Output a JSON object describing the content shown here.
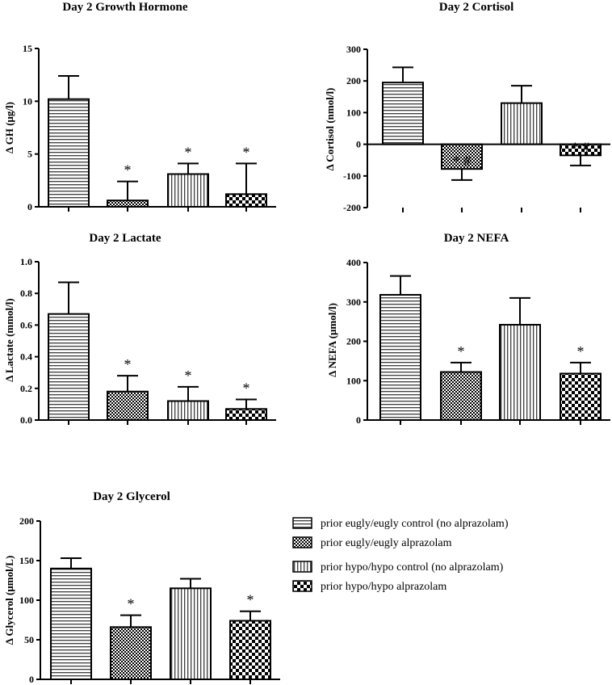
{
  "colors": {
    "ink": "#000000",
    "background": "#ffffff"
  },
  "legend": {
    "items": [
      {
        "label": "prior eugly/eugly control (no alprazolam)",
        "pattern": "hlines"
      },
      {
        "label": "prior eugly/eugly alprazolam",
        "pattern": "fine-check"
      },
      {
        "label": "prior hypo/hypo control (no alprazolam)",
        "pattern": "vlines"
      },
      {
        "label": "prior hypo/hypo alprazolam",
        "pattern": "coarse-check"
      }
    ]
  },
  "chart_data": [
    {
      "type": "bar",
      "title": "Day 2 Growth Hormone",
      "ylabel": "Δ GH (μg/l)",
      "ylim": [
        0,
        15
      ],
      "yticks": [
        0,
        5,
        10,
        15
      ],
      "ytick_labels": [
        "0",
        "5",
        "10",
        "15"
      ],
      "values": [
        10.2,
        0.6,
        3.1,
        1.2
      ],
      "errors": [
        2.2,
        1.8,
        1.0,
        2.9
      ],
      "patterns": [
        "hlines",
        "fine-check",
        "vlines",
        "coarse-check"
      ],
      "annotations": [
        "",
        "*",
        "*",
        "*"
      ]
    },
    {
      "type": "bar",
      "title": "Day 2 Cortisol",
      "ylabel": "Δ Cortisol (nmol/l)",
      "ylim": [
        -200,
        300
      ],
      "yticks": [
        -200,
        -100,
        0,
        100,
        200,
        300
      ],
      "ytick_labels": [
        "-200",
        "-100",
        "0",
        "100",
        "200",
        "300"
      ],
      "values": [
        195,
        -78,
        130,
        -35
      ],
      "errors": [
        48,
        35,
        55,
        32
      ],
      "patterns": [
        "hlines",
        "fine-check",
        "vlines",
        "coarse-check"
      ],
      "annotations": [
        "",
        "* #",
        "",
        "* #"
      ]
    },
    {
      "type": "bar",
      "title": "Day 2 Lactate",
      "ylabel": "Δ Lactate (mmol/l)",
      "ylim": [
        0,
        1.0
      ],
      "yticks": [
        0,
        0.2,
        0.4,
        0.6,
        0.8,
        1.0
      ],
      "ytick_labels": [
        "0.0",
        "0.2",
        "0.4",
        "0.6",
        "0.8",
        "1.0"
      ],
      "values": [
        0.67,
        0.18,
        0.12,
        0.07
      ],
      "errors": [
        0.2,
        0.1,
        0.09,
        0.06
      ],
      "patterns": [
        "hlines",
        "fine-check",
        "vlines",
        "coarse-check"
      ],
      "annotations": [
        "",
        "*",
        "*",
        "*"
      ]
    },
    {
      "type": "bar",
      "title": "Day 2 NEFA",
      "ylabel": "Δ NEFA (μmol/l)",
      "ylim": [
        0,
        400
      ],
      "yticks": [
        0,
        100,
        200,
        300,
        400
      ],
      "ytick_labels": [
        "0",
        "100",
        "200",
        "300",
        "400"
      ],
      "values": [
        318,
        122,
        242,
        118
      ],
      "errors": [
        48,
        24,
        68,
        28
      ],
      "patterns": [
        "hlines",
        "fine-check",
        "vlines",
        "coarse-check"
      ],
      "annotations": [
        "",
        "*",
        "",
        "*"
      ]
    },
    {
      "type": "bar",
      "title": "Day 2 Glycerol",
      "ylabel": "Δ Glycerol (μmol/L)",
      "ylim": [
        0,
        200
      ],
      "yticks": [
        0,
        50,
        100,
        150,
        200
      ],
      "ytick_labels": [
        "0",
        "50",
        "100",
        "150",
        "200"
      ],
      "values": [
        140,
        66,
        115,
        74
      ],
      "errors": [
        13,
        15,
        12,
        12
      ],
      "patterns": [
        "hlines",
        "fine-check",
        "vlines",
        "coarse-check"
      ],
      "annotations": [
        "",
        "*",
        "",
        "*"
      ]
    }
  ]
}
